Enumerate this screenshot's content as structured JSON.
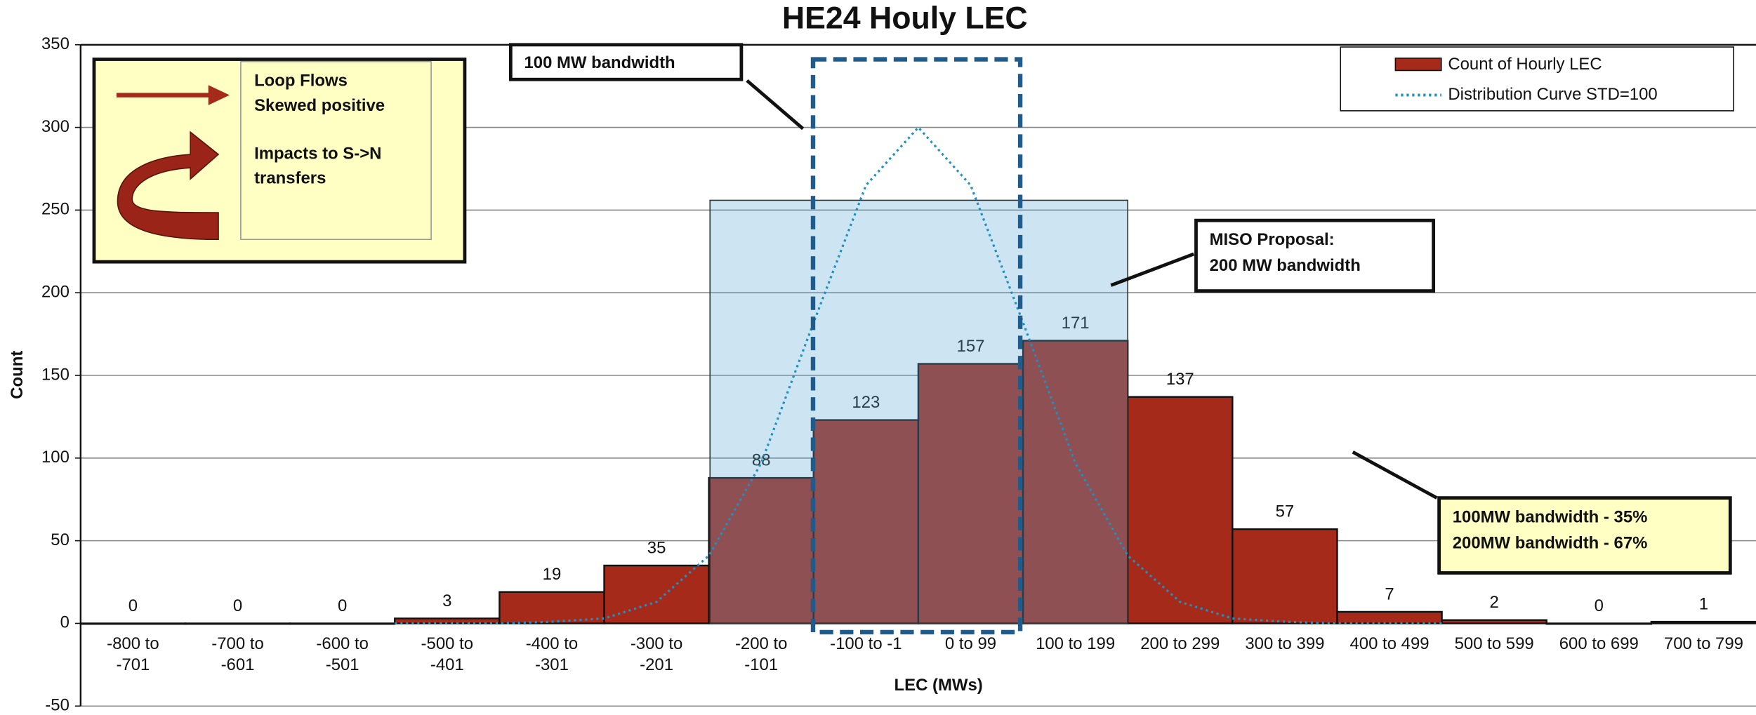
{
  "chart_data": {
    "type": "bar",
    "title": "HE24 Houly LEC",
    "xlabel": "LEC (MWs)",
    "ylabel": "Count",
    "categories": [
      "-800 to -701",
      "-700 to -601",
      "-600 to -501",
      "-500 to -401",
      "-400 to -301",
      "-300 to -201",
      "-200 to -101",
      "-100 to -1",
      "0 to 99",
      "100 to 199",
      "200 to 299",
      "300 to 399",
      "400 to 499",
      "500 to 599",
      "600 to 699",
      "700 to 799"
    ],
    "xlim": [
      -800,
      800
    ],
    "series": [
      {
        "name": "Count of Hourly LEC",
        "color": "#a52a1a",
        "values": [
          0,
          0,
          0,
          3,
          19,
          35,
          88,
          123,
          157,
          171,
          137,
          57,
          7,
          2,
          0,
          1
        ]
      },
      {
        "name": "Distribution Curve STD=100",
        "type": "line",
        "color": "#1f8fc4",
        "x": [
          -500,
          -450,
          -400,
          -350,
          -300,
          -250,
          -200,
          -150,
          -100,
          -50,
          0,
          50,
          100,
          150,
          200,
          250,
          300,
          350,
          400,
          450,
          500
        ],
        "values": [
          0,
          0,
          0,
          1,
          3,
          13,
          41,
          97,
          182,
          265,
          300,
          265,
          182,
          97,
          41,
          13,
          3,
          1,
          0,
          0,
          0
        ]
      }
    ],
    "ylim": [
      -50,
      350
    ],
    "yticks": [
      -50,
      0,
      50,
      100,
      150,
      200,
      250,
      300,
      350
    ],
    "grid": true,
    "legend": "upper right",
    "annotations": {
      "box_left": [
        "Loop Flows",
        "Skewed positive",
        "Impacts to S->N",
        "transfers"
      ],
      "band100": "100 MW bandwidth",
      "miso": [
        "MISO Proposal:",
        "200 MW bandwidth"
      ],
      "share": [
        "100MW bandwidth - 35%",
        "200MW bandwidth - 67%"
      ]
    }
  }
}
